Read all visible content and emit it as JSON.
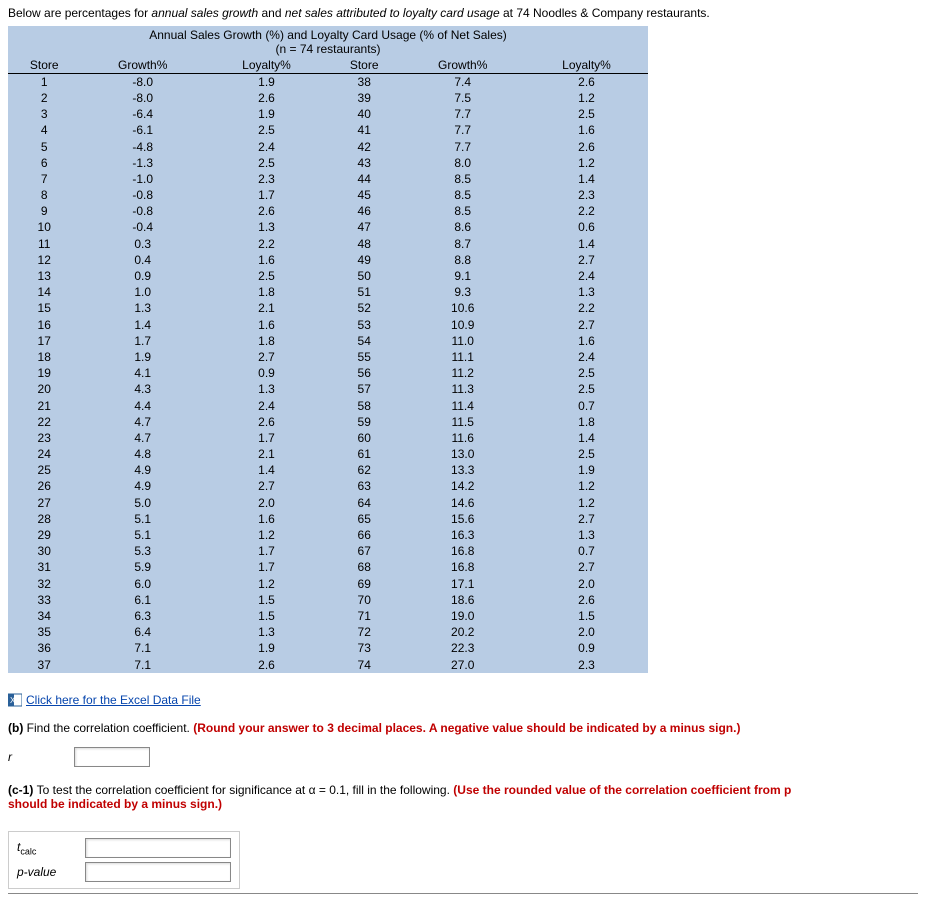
{
  "intro_prefix": "Below are percentages for ",
  "intro_em1": "annual sales growth",
  "intro_mid": " and ",
  "intro_em2": "net sales attributed to loyalty card usage",
  "intro_suffix": " at 74 Noodles & Company restaurants.",
  "table_title1": "Annual Sales Growth (%) and Loyalty Card Usage (% of Net Sales)",
  "table_title2": "(n = 74 restaurants)",
  "col_headers": [
    "Store",
    "Growth%",
    "Loyalty%",
    "Store",
    "Growth%",
    "Loyalty%"
  ],
  "rows": [
    [
      "1",
      "-8.0",
      "1.9",
      "38",
      "7.4",
      "2.6"
    ],
    [
      "2",
      "-8.0",
      "2.6",
      "39",
      "7.5",
      "1.2"
    ],
    [
      "3",
      "-6.4",
      "1.9",
      "40",
      "7.7",
      "2.5"
    ],
    [
      "4",
      "-6.1",
      "2.5",
      "41",
      "7.7",
      "1.6"
    ],
    [
      "5",
      "-4.8",
      "2.4",
      "42",
      "7.7",
      "2.6"
    ],
    [
      "6",
      "-1.3",
      "2.5",
      "43",
      "8.0",
      "1.2"
    ],
    [
      "7",
      "-1.0",
      "2.3",
      "44",
      "8.5",
      "1.4"
    ],
    [
      "8",
      "-0.8",
      "1.7",
      "45",
      "8.5",
      "2.3"
    ],
    [
      "9",
      "-0.8",
      "2.6",
      "46",
      "8.5",
      "2.2"
    ],
    [
      "10",
      "-0.4",
      "1.3",
      "47",
      "8.6",
      "0.6"
    ],
    [
      "11",
      "0.3",
      "2.2",
      "48",
      "8.7",
      "1.4"
    ],
    [
      "12",
      "0.4",
      "1.6",
      "49",
      "8.8",
      "2.7"
    ],
    [
      "13",
      "0.9",
      "2.5",
      "50",
      "9.1",
      "2.4"
    ],
    [
      "14",
      "1.0",
      "1.8",
      "51",
      "9.3",
      "1.3"
    ],
    [
      "15",
      "1.3",
      "2.1",
      "52",
      "10.6",
      "2.2"
    ],
    [
      "16",
      "1.4",
      "1.6",
      "53",
      "10.9",
      "2.7"
    ],
    [
      "17",
      "1.7",
      "1.8",
      "54",
      "11.0",
      "1.6"
    ],
    [
      "18",
      "1.9",
      "2.7",
      "55",
      "11.1",
      "2.4"
    ],
    [
      "19",
      "4.1",
      "0.9",
      "56",
      "11.2",
      "2.5"
    ],
    [
      "20",
      "4.3",
      "1.3",
      "57",
      "11.3",
      "2.5"
    ],
    [
      "21",
      "4.4",
      "2.4",
      "58",
      "11.4",
      "0.7"
    ],
    [
      "22",
      "4.7",
      "2.6",
      "59",
      "11.5",
      "1.8"
    ],
    [
      "23",
      "4.7",
      "1.7",
      "60",
      "11.6",
      "1.4"
    ],
    [
      "24",
      "4.8",
      "2.1",
      "61",
      "13.0",
      "2.5"
    ],
    [
      "25",
      "4.9",
      "1.4",
      "62",
      "13.3",
      "1.9"
    ],
    [
      "26",
      "4.9",
      "2.7",
      "63",
      "14.2",
      "1.2"
    ],
    [
      "27",
      "5.0",
      "2.0",
      "64",
      "14.6",
      "1.2"
    ],
    [
      "28",
      "5.1",
      "1.6",
      "65",
      "15.6",
      "2.7"
    ],
    [
      "29",
      "5.1",
      "1.2",
      "66",
      "16.3",
      "1.3"
    ],
    [
      "30",
      "5.3",
      "1.7",
      "67",
      "16.8",
      "0.7"
    ],
    [
      "31",
      "5.9",
      "1.7",
      "68",
      "16.8",
      "2.7"
    ],
    [
      "32",
      "6.0",
      "1.2",
      "69",
      "17.1",
      "2.0"
    ],
    [
      "33",
      "6.1",
      "1.5",
      "70",
      "18.6",
      "2.6"
    ],
    [
      "34",
      "6.3",
      "1.5",
      "71",
      "19.0",
      "1.5"
    ],
    [
      "35",
      "6.4",
      "1.3",
      "72",
      "20.2",
      "2.0"
    ],
    [
      "36",
      "7.1",
      "1.9",
      "73",
      "22.3",
      "0.9"
    ],
    [
      "37",
      "7.1",
      "2.6",
      "74",
      "27.0",
      "2.3"
    ]
  ],
  "excel_link_text": "Click here for the Excel Data File",
  "qb_bold": "(b) ",
  "qb_text": "Find the correlation coefficient. ",
  "qb_red": "(Round your answer to 3 decimal places. A negative value should be indicated by a minus sign.)",
  "r_label": "r",
  "qc_bold": "(c-1) ",
  "qc_text": "To test the correlation coefficient for significance at α = 0.1, fill in the following. ",
  "qc_red_line1": "(Use the rounded value of the correlation coefficient from p",
  "qc_red_line2": "should be indicated by a minus sign.)",
  "tcalc_label_t": "t",
  "tcalc_label_sub": "calc",
  "pvalue_label": "p-value"
}
